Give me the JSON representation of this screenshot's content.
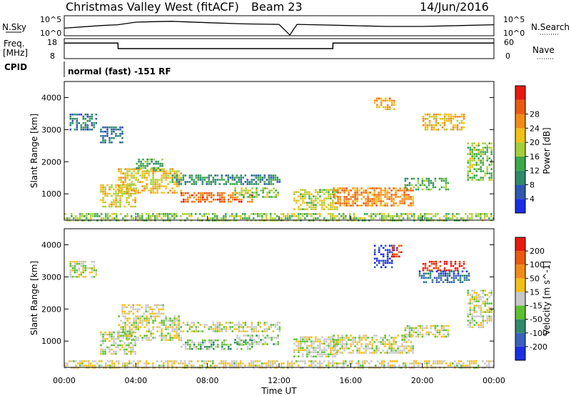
{
  "header": {
    "title": "Christmas Valley West (fitACF)",
    "beam": "Beam 23",
    "date": "14/Jun/2016"
  },
  "top_panels": {
    "nsky_label": "N.Sky",
    "nsky_ticks": [
      "10^5",
      "10^0"
    ],
    "nsearch_label": "N.Search",
    "freq_label": "Freq.",
    "freq_unit": "[MHz]",
    "freq_ticks": [
      "18",
      "8"
    ],
    "nave_label": "Nave",
    "nave_ticks": [
      "60",
      "0"
    ],
    "cpid_label": "CPID",
    "cpid_text": "normal (fast) -151 RF"
  },
  "axes": {
    "ylabel": "Slant Range [km]",
    "xlabel": "Time UT",
    "xticks": [
      "00:00",
      "04:00",
      "08:00",
      "12:00",
      "16:00",
      "20:00",
      "00:00"
    ],
    "yticks": [
      "1000",
      "2000",
      "3000",
      "4000"
    ]
  },
  "power_colorbar": {
    "label": "Power [dB]",
    "ticks": [
      "4",
      "8",
      "12",
      "16",
      "20",
      "24",
      "28"
    ],
    "colors": [
      "#1a2ee6",
      "#2f58b0",
      "#2e8a6a",
      "#3da84a",
      "#a5cf38",
      "#f2c018",
      "#f28a18",
      "#e85a10",
      "#e81a10"
    ]
  },
  "velocity_colorbar": {
    "label": "Velocity [m s^-1]",
    "ticks": [
      "200",
      "100",
      "50",
      "15",
      "-15",
      "-50",
      "-100",
      "-200"
    ],
    "colors": [
      "#1a2ee6",
      "#3a60c0",
      "#2e8a6a",
      "#5cc030",
      "#c8c8c8",
      "#f2c018",
      "#f28a18",
      "#e85a10",
      "#e81a10"
    ]
  },
  "chart_data": [
    {
      "type": "line",
      "panel": "N.Sky",
      "x": [
        0,
        2,
        3,
        4,
        5,
        6,
        8,
        10,
        12,
        12.6,
        13,
        14,
        16,
        18,
        20,
        22,
        24
      ],
      "values": [
        0.4,
        0.55,
        0.6,
        0.75,
        0.78,
        0.8,
        0.72,
        0.65,
        0.62,
        0.0,
        0.62,
        0.6,
        0.55,
        0.5,
        0.5,
        0.55,
        0.6
      ]
    },
    {
      "type": "line",
      "panel": "Freq",
      "x": [
        0,
        3,
        3.01,
        15,
        15.01,
        24
      ],
      "values": [
        16,
        16,
        13,
        13,
        16,
        16
      ],
      "ylim": [
        8,
        18
      ]
    },
    {
      "type": "heatmap",
      "panel": "Power",
      "xlim": [
        0,
        24
      ],
      "ylim": [
        180,
        4500
      ],
      "xlabel": "Time UT",
      "ylabel": "Slant Range [km]",
      "clim": [
        0,
        30
      ],
      "regions": [
        {
          "t0": 0.3,
          "t1": 1.8,
          "r0": 3000,
          "r1": 3500,
          "v": 7
        },
        {
          "t0": 2.0,
          "t1": 3.2,
          "r0": 2600,
          "r1": 3100,
          "v": 6
        },
        {
          "t0": 2.0,
          "t1": 4.0,
          "r0": 600,
          "r1": 1300,
          "v": 17
        },
        {
          "t0": 3.0,
          "t1": 6.5,
          "r0": 1000,
          "r1": 1800,
          "v": 18
        },
        {
          "t0": 4.0,
          "t1": 5.5,
          "r0": 1700,
          "r1": 2100,
          "v": 12
        },
        {
          "t0": 6.5,
          "t1": 10.5,
          "r0": 750,
          "r1": 1050,
          "v": 24
        },
        {
          "t0": 9.5,
          "t1": 12.0,
          "r0": 900,
          "r1": 1200,
          "v": 14
        },
        {
          "t0": 6.0,
          "t1": 12.0,
          "r0": 1300,
          "r1": 1600,
          "v": 9
        },
        {
          "t0": 12.8,
          "t1": 15.2,
          "r0": 500,
          "r1": 1150,
          "v": 16
        },
        {
          "t0": 15.0,
          "t1": 19.5,
          "r0": 600,
          "r1": 1200,
          "v": 22
        },
        {
          "t0": 19.0,
          "t1": 21.5,
          "r0": 1100,
          "r1": 1500,
          "v": 12
        },
        {
          "t0": 17.3,
          "t1": 18.4,
          "r0": 3600,
          "r1": 4000,
          "v": 20
        },
        {
          "t0": 20.0,
          "t1": 22.3,
          "r0": 3000,
          "r1": 3500,
          "v": 19
        },
        {
          "t0": 22.5,
          "t1": 23.9,
          "r0": 1400,
          "r1": 2600,
          "v": 14
        },
        {
          "t0": 0.0,
          "t1": 24.0,
          "r0": 180,
          "r1": 400,
          "v": 14
        }
      ]
    },
    {
      "type": "heatmap",
      "panel": "Velocity",
      "xlim": [
        0,
        24
      ],
      "ylim": [
        180,
        4500
      ],
      "xlabel": "Time UT",
      "ylabel": "Slant Range [km]",
      "clim": [
        -250,
        250
      ],
      "regions": [
        {
          "t0": 0.3,
          "t1": 1.8,
          "r0": 3000,
          "r1": 3500,
          "v": 0
        },
        {
          "t0": 2.0,
          "t1": 4.0,
          "r0": 600,
          "r1": 1300,
          "v": 0
        },
        {
          "t0": 3.0,
          "t1": 6.5,
          "r0": 1000,
          "r1": 1800,
          "v": 0
        },
        {
          "t0": 3.2,
          "t1": 5.5,
          "r0": 1850,
          "r1": 2150,
          "v": 30
        },
        {
          "t0": 6.5,
          "t1": 10.5,
          "r0": 750,
          "r1": 1050,
          "v": -45
        },
        {
          "t0": 9.5,
          "t1": 12.0,
          "r0": 900,
          "r1": 1200,
          "v": -30
        },
        {
          "t0": 6.0,
          "t1": 12.0,
          "r0": 1300,
          "r1": 1600,
          "v": 0
        },
        {
          "t0": 12.8,
          "t1": 15.2,
          "r0": 500,
          "r1": 1150,
          "v": 0
        },
        {
          "t0": 15.0,
          "t1": 19.5,
          "r0": 600,
          "r1": 1200,
          "v": 0
        },
        {
          "t0": 19.0,
          "t1": 21.5,
          "r0": 1100,
          "r1": 1500,
          "v": 0
        },
        {
          "t0": 17.3,
          "t1": 18.4,
          "r0": 3300,
          "r1": 4000,
          "v": -220
        },
        {
          "t0": 18.3,
          "t1": 18.8,
          "r0": 3600,
          "r1": 4000,
          "v": 220
        },
        {
          "t0": 20.0,
          "t1": 22.3,
          "r0": 3200,
          "r1": 3500,
          "v": 220
        },
        {
          "t0": 19.8,
          "t1": 22.6,
          "r0": 2800,
          "r1": 3200,
          "v": -150
        },
        {
          "t0": 22.5,
          "t1": 23.9,
          "r0": 1400,
          "r1": 2600,
          "v": 0
        },
        {
          "t0": 0.0,
          "t1": 24.0,
          "r0": 180,
          "r1": 400,
          "v": 20
        }
      ]
    }
  ]
}
